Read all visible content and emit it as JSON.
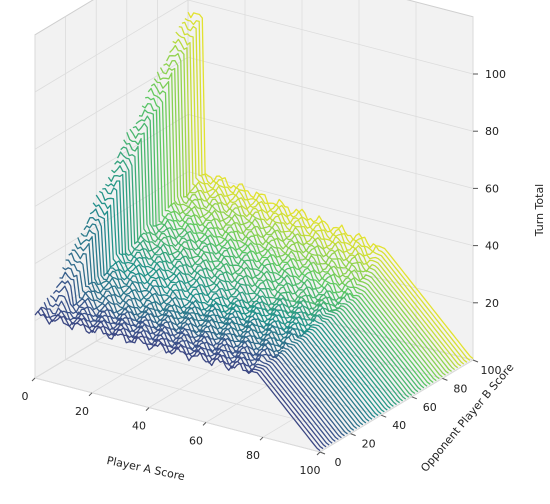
{
  "chart_data": {
    "type": "surface-3d-contour",
    "title": "",
    "xlabel": "Player A Score",
    "ylabel": "Opponent Player B Score",
    "zlabel": "Turn Total",
    "xlim": [
      0,
      100
    ],
    "ylim": [
      0,
      100
    ],
    "zlim": [
      0,
      100
    ],
    "x_ticks": [
      "0",
      "20",
      "40",
      "60",
      "80",
      "100"
    ],
    "y_ticks": [
      "0",
      "20",
      "40",
      "60",
      "80",
      "100"
    ],
    "z_ticks": [
      "20",
      "40",
      "60",
      "80",
      "100"
    ],
    "grid": true,
    "colormap": "viridis",
    "line_spacing_y": 2,
    "description_of_values": "Hold-at threshold (turn total) per (A score, B score): ~100-A when near winning, ~20-30 elsewhere, rising to ~95 along the A=0 edge when B is high"
  },
  "style": {
    "pane_color": "#f2f2f2",
    "grid_color": "#dcdcdc",
    "edge_color": "#555555",
    "colormap_stops": [
      "#440154",
      "#3b528b",
      "#21918c",
      "#5ec962",
      "#fde725"
    ]
  }
}
